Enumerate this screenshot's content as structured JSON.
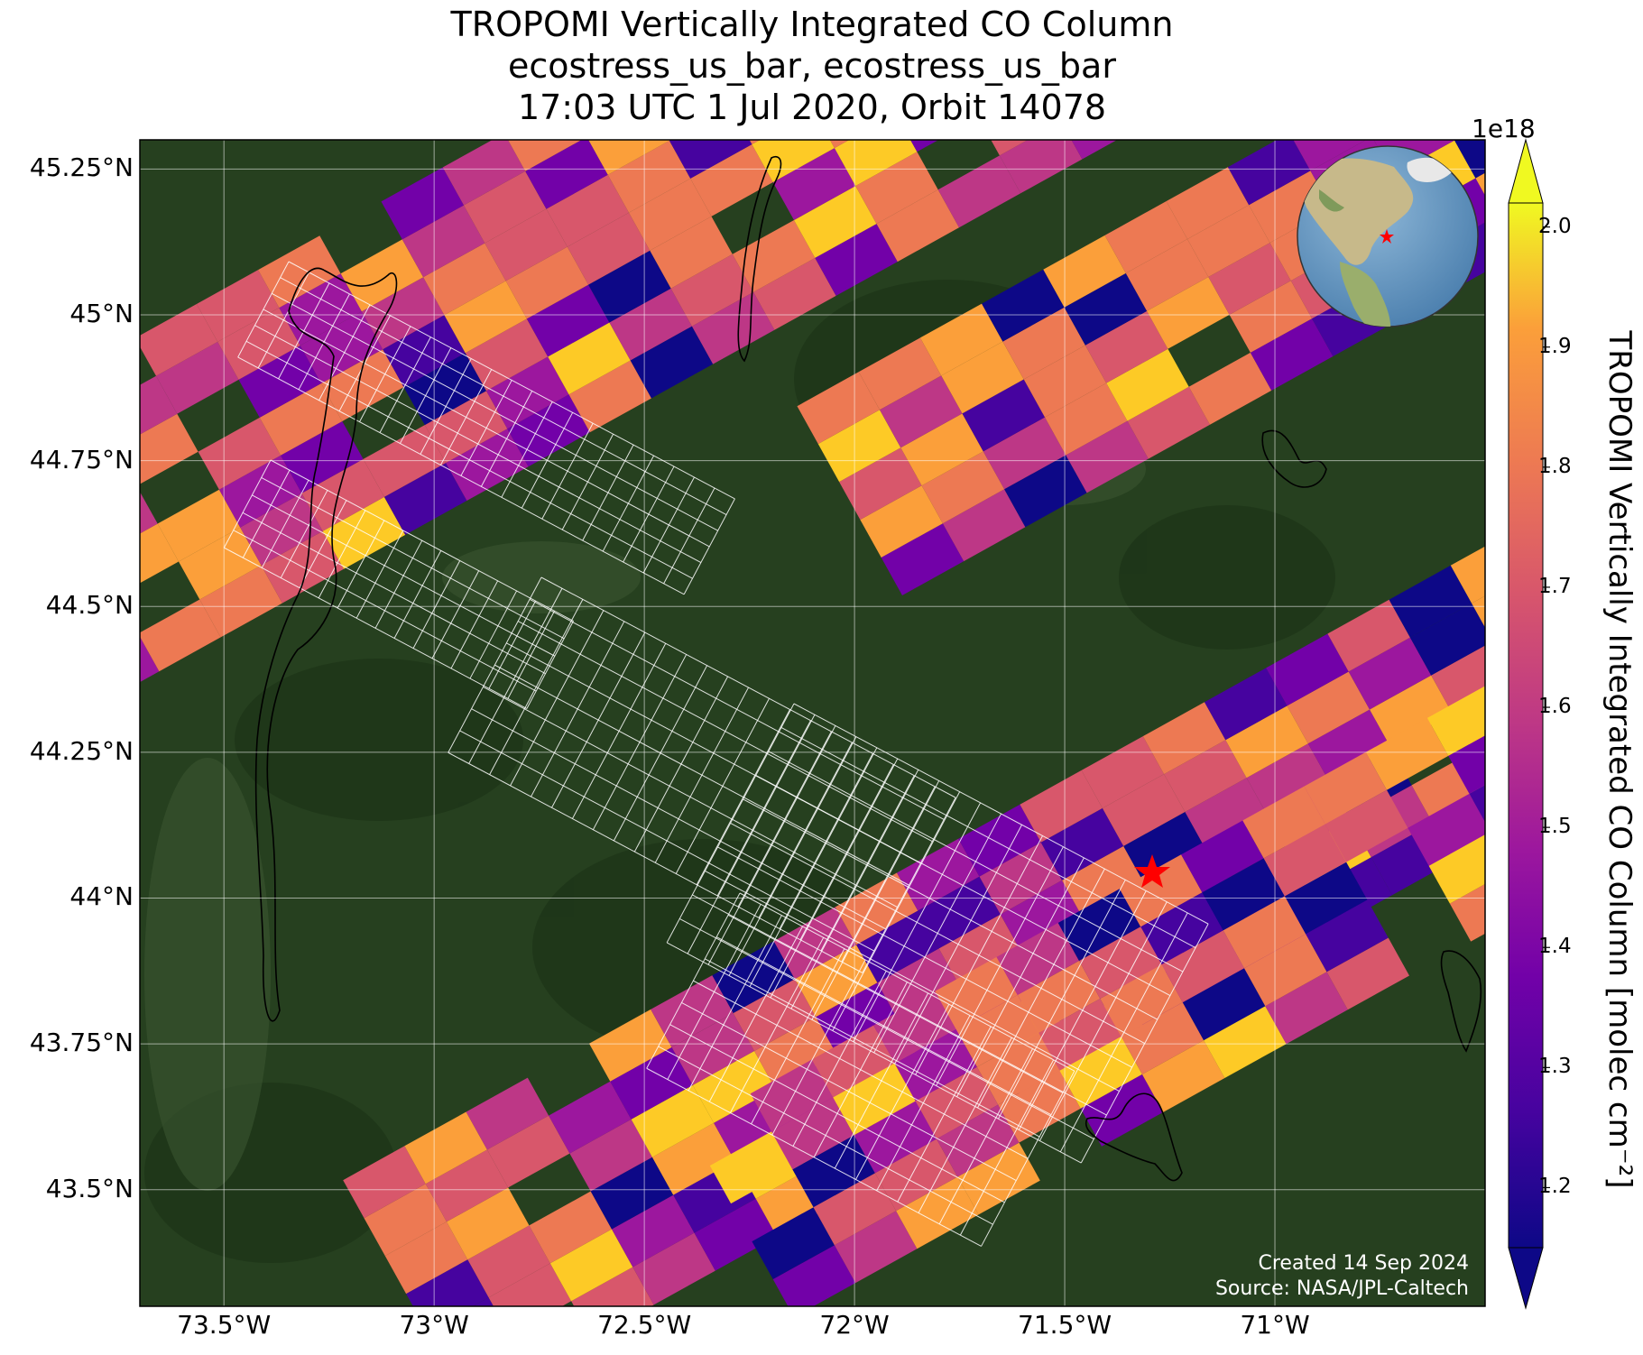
{
  "header": {
    "title_line1": "TROPOMI Vertically Integrated CO Column",
    "title_line2": "ecostress_us_bar, ecostress_us_bar",
    "title_line3": "17:03 UTC 1 Jul 2020, Orbit 14078"
  },
  "map": {
    "lat_labels": [
      "45.25°N",
      "45°N",
      "44.75°N",
      "44.5°N",
      "44.25°N",
      "44°N",
      "43.75°N",
      "43.5°N"
    ],
    "lon_labels": [
      "73.5°W",
      "73°W",
      "72.5°W",
      "72°W",
      "71.5°W",
      "71°W"
    ],
    "lon_range": [
      -73.7,
      -70.5
    ],
    "lat_range": [
      43.3,
      45.3
    ],
    "gridlines": true,
    "basemap": "satellite imagery (forest green terrain)",
    "target_marker": {
      "lon": -71.3,
      "lat": 44.07,
      "symbol": "red-star"
    },
    "inset_globe": {
      "position": "top-right",
      "marker": "red-star"
    }
  },
  "colorbar": {
    "label": "TROPOMI Vertically Integrated CO Column [molec cm⁻²]",
    "exponent": "1e18",
    "ticks": [
      "2.0",
      "1.9",
      "1.8",
      "1.7",
      "1.6",
      "1.5",
      "1.4",
      "1.3",
      "1.2"
    ],
    "range": [
      1.15,
      2.02
    ],
    "colormap": "plasma",
    "extend": "both"
  },
  "footer": {
    "created": "Created 14 Sep 2024",
    "source": "Source: NASA/JPL-Caltech"
  }
}
